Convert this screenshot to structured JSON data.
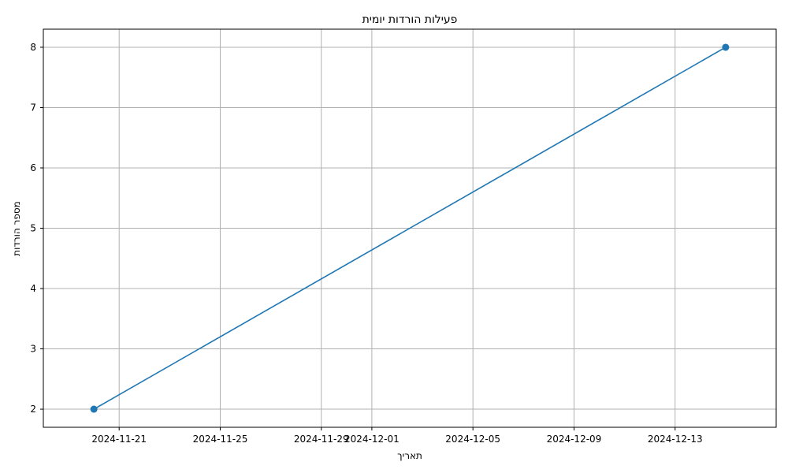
{
  "chart_data": {
    "type": "line",
    "title": "פעילות הורדות יומית",
    "xlabel": "תאריך",
    "ylabel": "מספר הורדות",
    "x_type": "date",
    "xlim": [
      "2024-11-18",
      "2024-12-17"
    ],
    "ylim": [
      1.7,
      8.3
    ],
    "grid": true,
    "x_ticks": [
      "2024-11-21",
      "2024-11-25",
      "2024-11-29",
      "2024-12-01",
      "2024-12-05",
      "2024-12-09",
      "2024-12-13"
    ],
    "y_ticks": [
      2,
      3,
      4,
      5,
      6,
      7,
      8
    ],
    "series": [
      {
        "color": "#1f77b4",
        "marker": "circle",
        "points": [
          {
            "x": "2024-11-20",
            "y": 2
          },
          {
            "x": "2024-12-15",
            "y": 8
          }
        ]
      }
    ]
  }
}
